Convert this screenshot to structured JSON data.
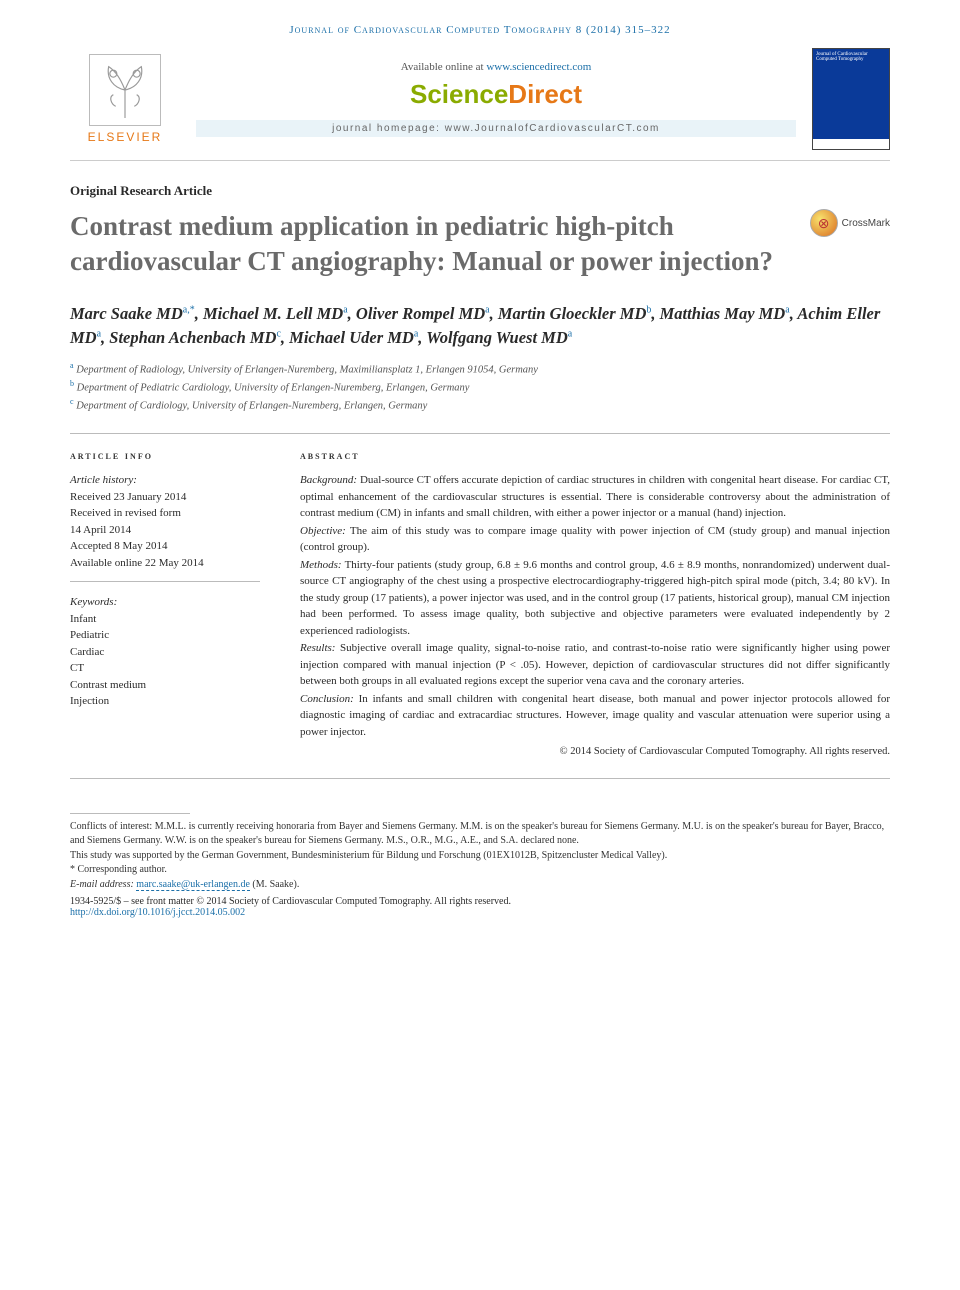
{
  "running_head": "Journal of Cardiovascular Computed Tomography 8 (2014) 315–322",
  "header": {
    "elsevier_label": "ELSEVIER",
    "available_online_pre": "Available online at ",
    "available_online_link": "www.sciencedirect.com",
    "sd_logo_sci": "Science",
    "sd_logo_direct": "Direct",
    "journal_hp_pre": "journal homepage: ",
    "journal_hp_link": "www.JournalofCardiovascularCT.com",
    "cover_text": "Journal of Cardiovascular Computed Tomography"
  },
  "article_type": "Original Research Article",
  "title": "Contrast medium application in pediatric high-pitch cardiovascular CT angiography: Manual or power injection?",
  "crossmark_label": "CrossMark",
  "authors_html": "Marc Saake MD<sup>a,*</sup>, Michael M. Lell MD<sup>a</sup>, Oliver Rompel MD<sup>a</sup>, Martin Gloeckler MD<sup>b</sup>, Matthias May MD<sup>a</sup>, Achim Eller MD<sup>a</sup>, Stephan Achenbach MD<sup>c</sup>, Michael Uder MD<sup>a</sup>, Wolfgang Wuest MD<sup>a</sup>",
  "affiliations": [
    {
      "mark": "a",
      "text": "Department of Radiology, University of Erlangen-Nuremberg, Maximiliansplatz 1, Erlangen 91054, Germany"
    },
    {
      "mark": "b",
      "text": "Department of Pediatric Cardiology, University of Erlangen-Nuremberg, Erlangen, Germany"
    },
    {
      "mark": "c",
      "text": "Department of Cardiology, University of Erlangen-Nuremberg, Erlangen, Germany"
    }
  ],
  "info_head": "article info",
  "abstract_head": "abstract",
  "history": {
    "label": "Article history:",
    "received": "Received 23 January 2014",
    "revised1": "Received in revised form",
    "revised2": "14 April 2014",
    "accepted": "Accepted 8 May 2014",
    "online": "Available online 22 May 2014"
  },
  "keywords_label": "Keywords:",
  "keywords": [
    "Infant",
    "Pediatric",
    "Cardiac",
    "CT",
    "Contrast medium",
    "Injection"
  ],
  "abstract": {
    "background_label": "Background:",
    "background": "Dual-source CT offers accurate depiction of cardiac structures in children with congenital heart disease. For cardiac CT, optimal enhancement of the cardiovascular structures is essential. There is considerable controversy about the administration of contrast medium (CM) in infants and small children, with either a power injector or a manual (hand) injection.",
    "objective_label": "Objective:",
    "objective": "The aim of this study was to compare image quality with power injection of CM (study group) and manual injection (control group).",
    "methods_label": "Methods:",
    "methods": "Thirty-four patients (study group, 6.8 ± 9.6 months and control group, 4.6 ± 8.9 months, nonrandomized) underwent dual-source CT angiography of the chest using a prospective electrocardiography-triggered high-pitch spiral mode (pitch, 3.4; 80 kV). In the study group (17 patients), a power injector was used, and in the control group (17 patients, historical group), manual CM injection had been performed. To assess image quality, both subjective and objective parameters were evaluated independently by 2 experienced radiologists.",
    "results_label": "Results:",
    "results": "Subjective overall image quality, signal-to-noise ratio, and contrast-to-noise ratio were significantly higher using power injection compared with manual injection (P < .05). However, depiction of cardiovascular structures did not differ significantly between both groups in all evaluated regions except the superior vena cava and the coronary arteries.",
    "conclusion_label": "Conclusion:",
    "conclusion": "In infants and small children with congenital heart disease, both manual and power injector protocols allowed for diagnostic imaging of cardiac and extracardiac structures. However, image quality and vascular attenuation were superior using a power injector.",
    "copyright": "© 2014 Society of Cardiovascular Computed Tomography. All rights reserved."
  },
  "footnotes": {
    "conflicts": "Conflicts of interest: M.M.L. is currently receiving honoraria from Bayer and Siemens Germany. M.M. is on the speaker's bureau for Siemens Germany. M.U. is on the speaker's bureau for Bayer, Bracco, and Siemens Germany. W.W. is on the speaker's bureau for Siemens Germany. M.S., O.R., M.G., A.E., and S.A. declared none.",
    "funding": "This study was supported by the German Government, Bundesministerium für Bildung und Forschung (01EX1012B, Spitzencluster Medical Valley).",
    "corr_label": "* Corresponding author.",
    "email_label": "E-mail address: ",
    "email": "marc.saake@uk-erlangen.de",
    "email_who": " (M. Saake)."
  },
  "issn_line": "1934-5925/$ – see front matter © 2014 Society of Cardiovascular Computed Tomography. All rights reserved.",
  "doi": "http://dx.doi.org/10.1016/j.jcct.2014.05.002",
  "colors": {
    "link": "#1b6fa8",
    "orange": "#e67817",
    "green": "#8aab00",
    "title_grey": "#6a6a6a"
  }
}
